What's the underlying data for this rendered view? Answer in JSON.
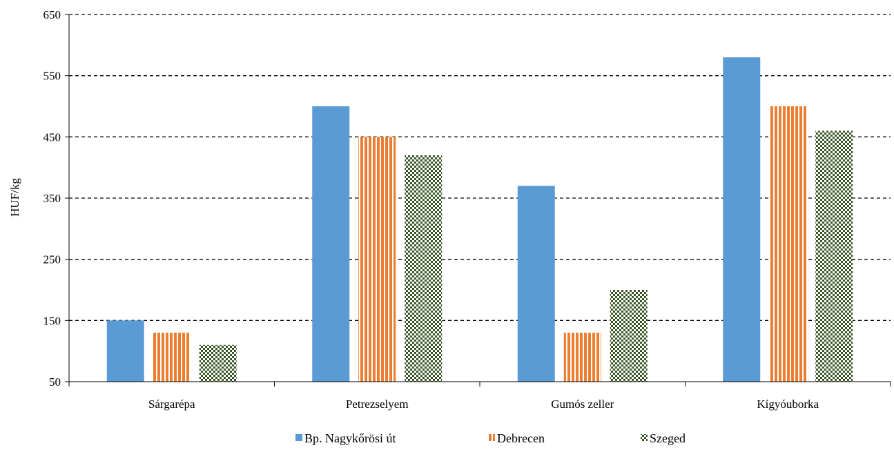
{
  "chart_data": {
    "type": "bar",
    "title": "",
    "xlabel": "",
    "ylabel": "HUF/kg",
    "ylim": [
      50,
      650
    ],
    "yticks": [
      "650",
      "550",
      "450",
      "350",
      "250",
      "150",
      "50"
    ],
    "grid": true,
    "legend_position": "bottom",
    "categories": [
      "Sárgarépa",
      "Petrezselyem",
      "Gumós zeller",
      "Kígyóuborka"
    ],
    "series": [
      {
        "name": "Bp. Nagykőrösi út",
        "values": [
          150,
          500,
          370,
          580
        ],
        "color": "#5b9bd5",
        "fill": "solid"
      },
      {
        "name": "Debrecen",
        "values": [
          130,
          450,
          130,
          500
        ],
        "color": "#ed7d31",
        "fill": "vertical-stripes"
      },
      {
        "name": "Szeged",
        "values": [
          110,
          420,
          200,
          460
        ],
        "color": "#375623",
        "fill": "checkerboard"
      }
    ]
  }
}
